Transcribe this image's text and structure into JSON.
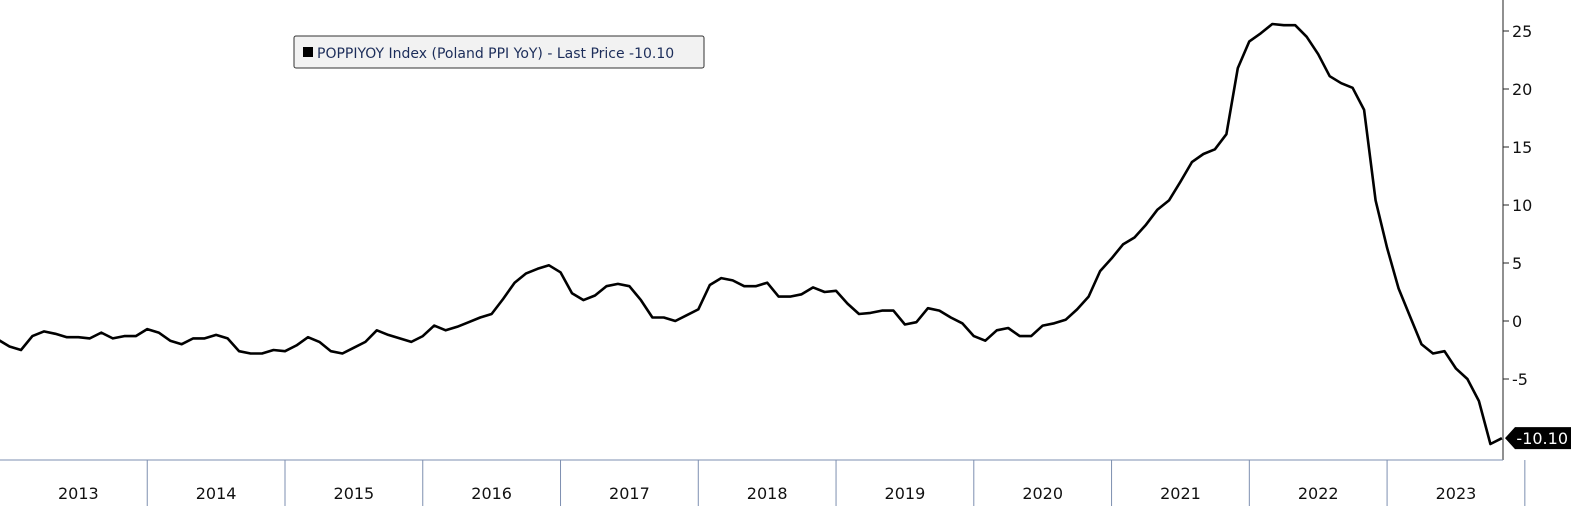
{
  "chart_data": {
    "type": "line",
    "title": "",
    "xlabel": "",
    "ylabel": "",
    "ylim": [
      -11,
      27
    ],
    "y_ticks": [
      25,
      20,
      15,
      10,
      5,
      0,
      -5
    ],
    "y_tick_labels": [
      "25",
      "20",
      "15",
      "10",
      "5",
      "0",
      "-5"
    ],
    "x_years": [
      "2013",
      "2014",
      "2015",
      "2016",
      "2017",
      "2018",
      "2019",
      "2020",
      "2021",
      "2022",
      "2023"
    ],
    "grid": false,
    "legend_position": "top-left",
    "legend": {
      "label": "POPPIYOY Index (Poland PPI YoY) - Last Price -10.10"
    },
    "last_value_label": "-10.10",
    "line_color": "#000000",
    "series": [
      {
        "name": "POPPIYOY Index (Poland PPI YoY)",
        "start": "2012-12",
        "values": [
          -1.6,
          -2.2,
          -2.5,
          -1.3,
          -0.9,
          -1.1,
          -1.4,
          -1.4,
          -1.5,
          -1.0,
          -1.5,
          -1.3,
          -1.3,
          -0.7,
          -1.0,
          -1.7,
          -2.0,
          -1.5,
          -1.5,
          -1.2,
          -1.5,
          -2.6,
          -2.8,
          -2.8,
          -2.5,
          -2.6,
          -2.1,
          -1.4,
          -1.8,
          -2.6,
          -2.8,
          -2.3,
          -1.8,
          -0.8,
          -1.2,
          -1.5,
          -1.8,
          -1.3,
          -0.4,
          -0.8,
          -0.5,
          -0.1,
          0.3,
          0.6,
          1.9,
          3.3,
          4.1,
          4.5,
          4.8,
          4.2,
          2.4,
          1.8,
          2.2,
          3.0,
          3.2,
          3.0,
          1.8,
          0.3,
          0.3,
          0.0,
          0.5,
          1.0,
          3.1,
          3.7,
          3.5,
          3.0,
          3.0,
          3.3,
          2.1,
          2.1,
          2.3,
          2.9,
          2.5,
          2.6,
          1.5,
          0.6,
          0.7,
          0.9,
          0.9,
          -0.3,
          -0.1,
          1.1,
          0.9,
          0.3,
          -0.2,
          -1.3,
          -1.7,
          -0.8,
          -0.6,
          -1.3,
          -1.3,
          -0.4,
          -0.2,
          0.1,
          1.0,
          2.1,
          4.3,
          5.4,
          6.6,
          7.2,
          8.3,
          9.6,
          10.4,
          12.0,
          13.7,
          14.4,
          14.8,
          16.1,
          21.8,
          24.1,
          24.8,
          25.6,
          25.5,
          25.5,
          24.5,
          23.0,
          21.1,
          20.5,
          20.1,
          18.2,
          10.4,
          6.3,
          2.8,
          0.4,
          -2.0,
          -2.8,
          -2.6,
          -4.1,
          -5.0,
          -6.9,
          -10.6,
          -10.1
        ]
      }
    ]
  }
}
